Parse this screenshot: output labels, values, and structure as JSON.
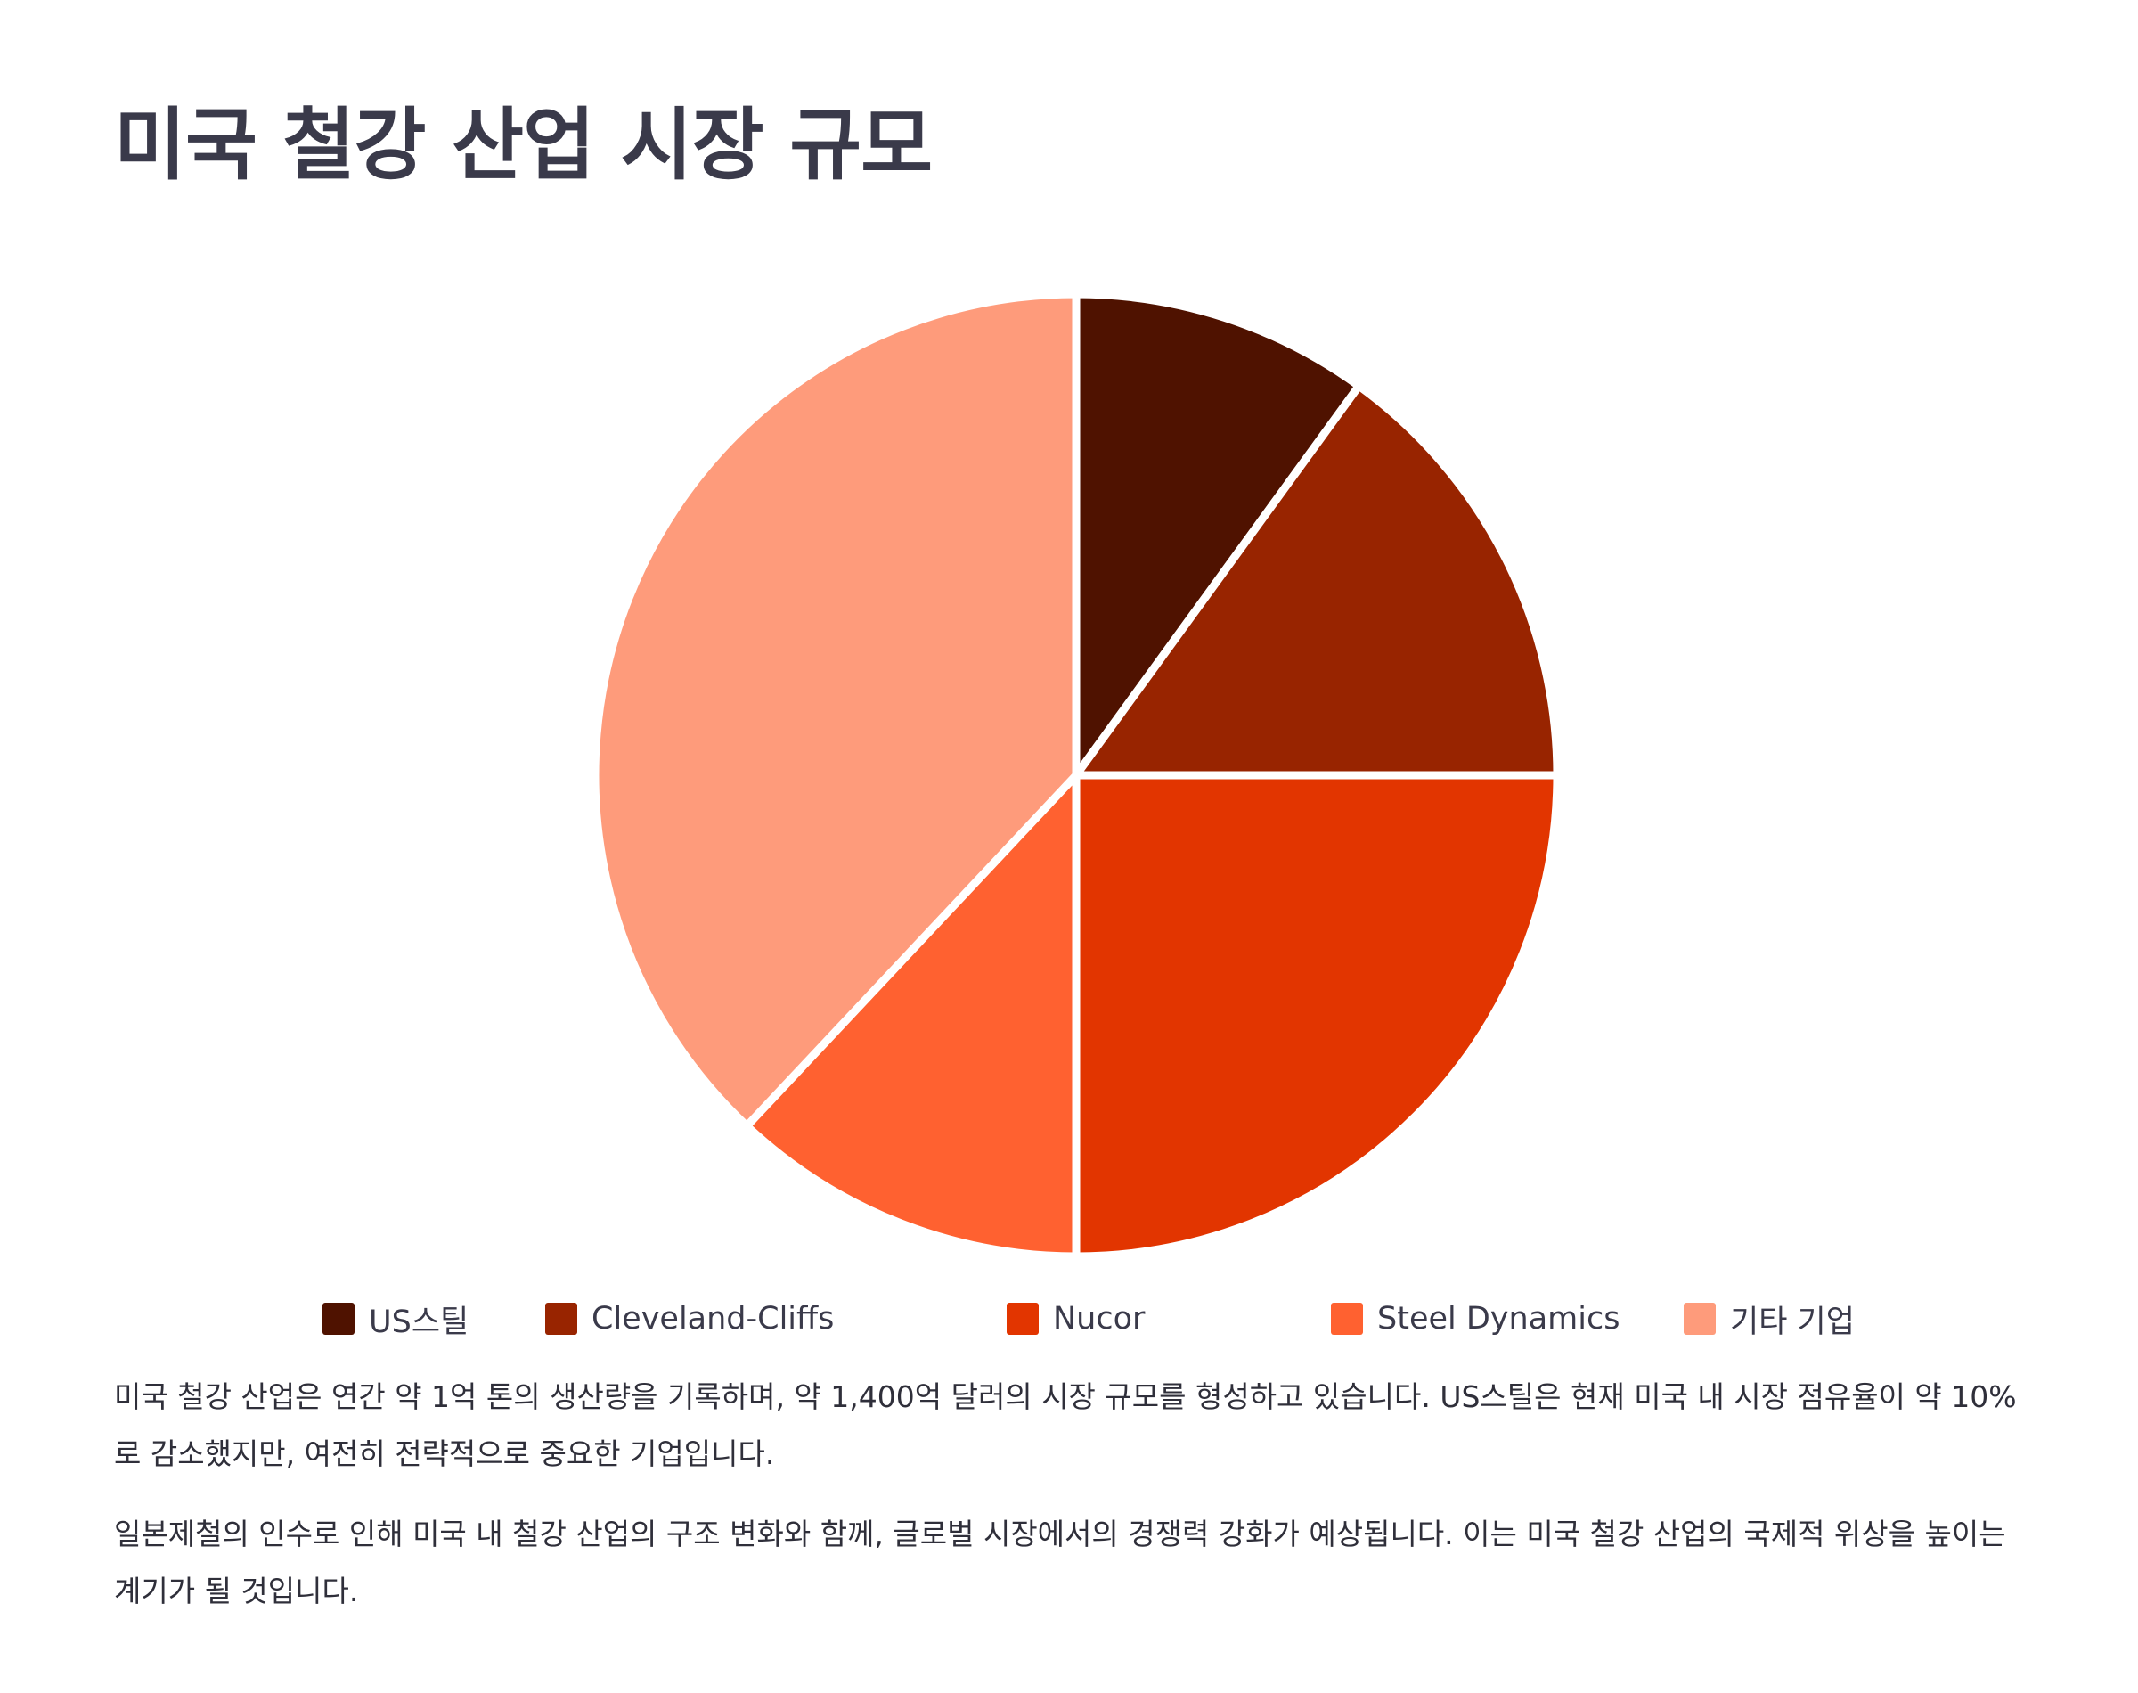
{
  "title": "미국 철강 산업 시장 규모",
  "chart_data": {
    "type": "pie",
    "categories": [
      "US스틸",
      "Cleveland-Cliffs",
      "Nucor",
      "Steel Dynamics",
      "기타 기업"
    ],
    "values": [
      10,
      15,
      25,
      12,
      38
    ],
    "colors": [
      "#4f1200",
      "#982400",
      "#e23500",
      "#ff6130",
      "#fe9b7b"
    ],
    "legend_position": "bottom"
  },
  "legend": {
    "items": [
      {
        "label": "US스틸",
        "color": "#4f1200"
      },
      {
        "label": "Cleveland-Cliffs",
        "color": "#982400"
      },
      {
        "label": "Nucor",
        "color": "#e23500"
      },
      {
        "label": "Steel Dynamics",
        "color": "#ff6130"
      },
      {
        "label": "기타 기업",
        "color": "#fe9b7b"
      }
    ]
  },
  "paragraphs": [
    "미국 철강 산업은 연간 약 1억 톤의 생산량을 기록하며, 약 1,400억 달러의 시장 규모를 형성하고 있습니다. US스틸은 현재 미국 내 시장 점유율이 약 10%로 감소했지만, 여전히 전략적으로 중요한 기업입니다.",
    "일본제철의 인수로 인해 미국 내 철강 산업의 구조 변화와 함께, 글로벌 시장에서의 경쟁력 강화가 예상됩니다. 이는 미국 철강 산업의 국제적 위상을 높이는 계기가 될 것입니다."
  ]
}
